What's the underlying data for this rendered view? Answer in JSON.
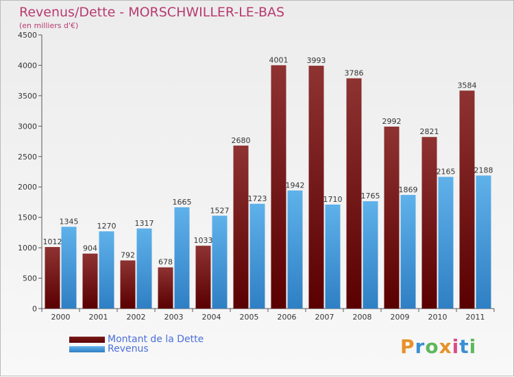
{
  "header": {
    "title": "Revenus/Dette - MORSCHWILLER-LE-BAS",
    "subtitle": "(en milliers d'€)"
  },
  "legend": {
    "items": [
      {
        "label": "Montant de la Dette",
        "color": "#7a1c1c"
      },
      {
        "label": "Revenus",
        "color": "#4aa3e6"
      }
    ]
  },
  "brand": {
    "name": "Proxiti"
  },
  "chart_data": {
    "type": "bar",
    "title": "Revenus/Dette - MORSCHWILLER-LE-BAS",
    "ylabel": "(en milliers d'€)",
    "categories": [
      "2000",
      "2001",
      "2002",
      "2003",
      "2004",
      "2005",
      "2006",
      "2007",
      "2008",
      "2009",
      "2010",
      "2011"
    ],
    "series": [
      {
        "name": "Montant de la Dette",
        "color": "#7a1c1c",
        "values": [
          1012,
          904,
          792,
          678,
          1033,
          2680,
          4001,
          3993,
          3786,
          2992,
          2821,
          3584
        ]
      },
      {
        "name": "Revenus",
        "color": "#4aa3e6",
        "values": [
          1345,
          1270,
          1317,
          1665,
          1527,
          1723,
          1942,
          1710,
          1765,
          1869,
          2165,
          2188
        ]
      }
    ],
    "ylim": [
      0,
      4500
    ],
    "yticks": [
      0,
      500,
      1000,
      1500,
      2000,
      2500,
      3000,
      3500,
      4000,
      4500
    ],
    "grid": false,
    "legend_position": "bottom-left"
  }
}
